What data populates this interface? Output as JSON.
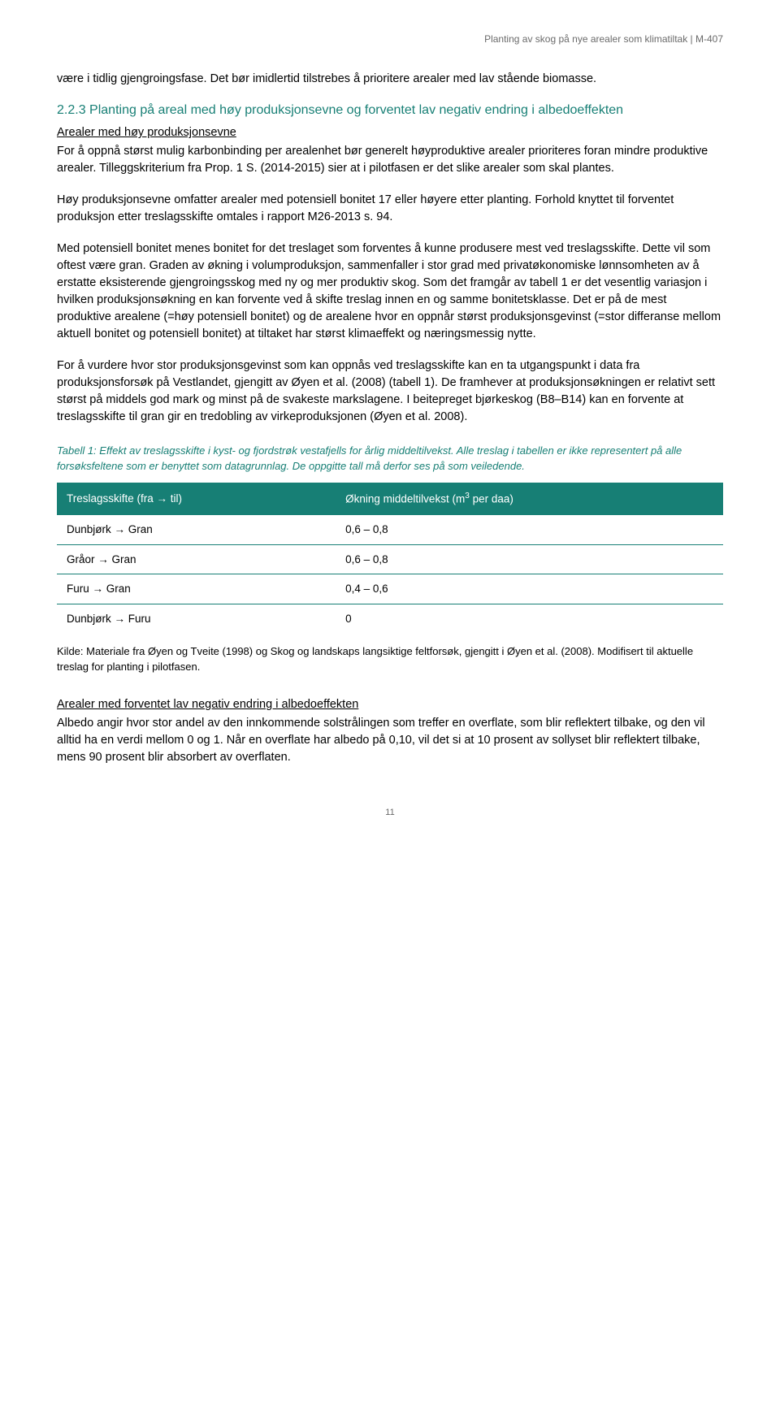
{
  "header": {
    "running_title": "Planting av skog på nye arealer som klimatiltak  |  M-407"
  },
  "intro_para": "være i tidlig gjengroingsfase. Det bør imidlertid tilstrebes å prioritere arealer med lav stående biomasse.",
  "section": {
    "number": "2.2.3",
    "title": "Planting på areal med høy produksjonsevne og forventet lav negativ endring i albedoeffekten",
    "color": "#177f75",
    "fontsize_pt": 16
  },
  "sub1_heading": "Arealer med høy produksjonsevne",
  "para1": "For å oppnå størst mulig karbonbinding per arealenhet bør generelt høyproduktive arealer prioriteres foran mindre produktive arealer. Tilleggskriterium fra Prop. 1 S. (2014-2015) sier at i pilotfasen er det slike arealer som skal plantes.",
  "para2": "Høy produksjonsevne omfatter arealer med potensiell bonitet 17 eller høyere etter planting. Forhold knyttet til forventet produksjon etter treslagsskifte omtales i rapport M26-2013 s. 94.",
  "para3": "Med potensiell bonitet menes bonitet for det treslaget som forventes å kunne produsere mest ved treslagsskifte. Dette vil som oftest være gran. Graden av økning i volumproduksjon, sammenfaller i stor grad med privatøkonomiske lønnsomheten av å erstatte eksisterende gjengroingsskog med ny og mer produktiv skog. Som det framgår av tabell 1 er det vesentlig variasjon i hvilken produksjonsøkning en kan forvente ved å skifte treslag innen en og samme bonitetsklasse. Det er på de mest produktive arealene (=høy potensiell bonitet) og de arealene hvor en oppnår størst produksjonsgevinst (=stor differanse mellom aktuell bonitet og potensiell bonitet) at tiltaket har størst klimaeffekt og næringsmessig nytte.",
  "para4": "For å vurdere hvor stor produksjonsgevinst som kan oppnås ved treslagsskifte kan en ta utgangspunkt i data fra produksjonsforsøk på Vestlandet, gjengitt av Øyen et al. (2008) (tabell 1). De framhever at produksjonsøkningen er relativt sett størst på middels god mark og minst på de svakeste markslagene. I beitepreget bjørkeskog (B8–B14) kan en forvente at treslagsskifte til gran gir en tredobling av virkeproduksjonen (Øyen et al. 2008).",
  "table": {
    "caption": "Tabell 1: Effekt av treslagsskifte i kyst- og fjordstrøk vestafjells for årlig middeltilvekst. Alle treslag i tabellen er ikke representert på alle forsøksfeltene som er benyttet som datagrunnlag. De oppgitte tall må derfor ses på som veiledende.",
    "caption_color": "#177f75",
    "header_bg": "#177f75",
    "header_fg": "#ffffff",
    "row_border_color": "#177f75",
    "col1_header": "Treslagsskifte (fra → til)",
    "col2_header_prefix": "Økning middeltilvekst (m",
    "col2_header_sup": "3",
    "col2_header_suffix": " per daa)",
    "rows": [
      {
        "from_to": "Dunbjørk → Gran",
        "value": "0,6 – 0,8"
      },
      {
        "from_to": "Gråor → Gran",
        "value": "0,6 – 0,8"
      },
      {
        "from_to": "Furu → Gran",
        "value": "0,4 – 0,6"
      },
      {
        "from_to": "Dunbjørk → Furu",
        "value": "0"
      }
    ],
    "source": "Kilde: Materiale fra Øyen og Tveite (1998) og Skog og landskaps langsiktige feltforsøk, gjengitt i Øyen et al. (2008). Modifisert til aktuelle treslag for planting i pilotfasen."
  },
  "sub2_heading": "Arealer med forventet lav negativ endring i albedoeffekten",
  "para5": "Albedo angir hvor stor andel av den innkommende solstrålingen som treffer en overflate, som blir reflektert tilbake, og den vil alltid ha en verdi mellom 0 og 1. Når en overflate har albedo på 0,10, vil det si at 10 prosent av sollyset blir reflektert tilbake, mens 90 prosent blir absorbert av overflaten.",
  "page_number": "11",
  "colors": {
    "body_text": "#000000",
    "muted_text": "#6a6a6a",
    "accent": "#177f75",
    "background": "#ffffff"
  }
}
